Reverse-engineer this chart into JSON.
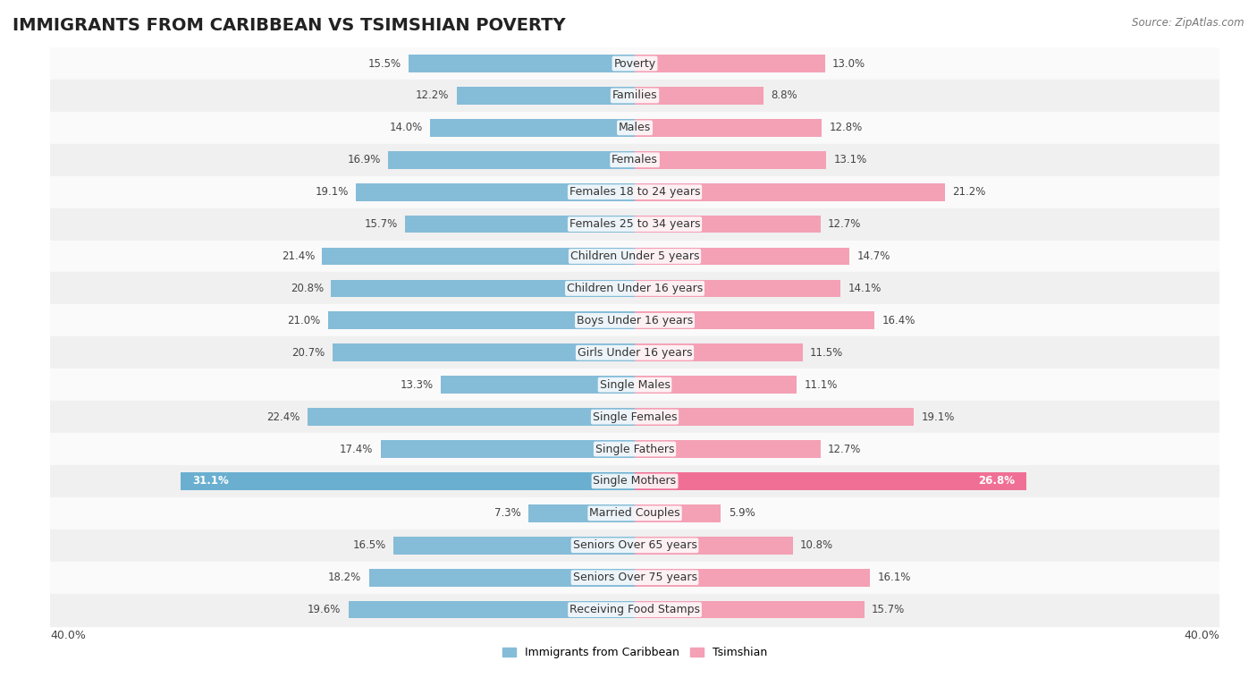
{
  "title": "IMMIGRANTS FROM CARIBBEAN VS TSIMSHIAN POVERTY",
  "source": "Source: ZipAtlas.com",
  "categories": [
    "Poverty",
    "Families",
    "Males",
    "Females",
    "Females 18 to 24 years",
    "Females 25 to 34 years",
    "Children Under 5 years",
    "Children Under 16 years",
    "Boys Under 16 years",
    "Girls Under 16 years",
    "Single Males",
    "Single Females",
    "Single Fathers",
    "Single Mothers",
    "Married Couples",
    "Seniors Over 65 years",
    "Seniors Over 75 years",
    "Receiving Food Stamps"
  ],
  "caribbean_values": [
    15.5,
    12.2,
    14.0,
    16.9,
    19.1,
    15.7,
    21.4,
    20.8,
    21.0,
    20.7,
    13.3,
    22.4,
    17.4,
    31.1,
    7.3,
    16.5,
    18.2,
    19.6
  ],
  "tsimshian_values": [
    13.0,
    8.8,
    12.8,
    13.1,
    21.2,
    12.7,
    14.7,
    14.1,
    16.4,
    11.5,
    11.1,
    19.1,
    12.7,
    26.8,
    5.9,
    10.8,
    16.1,
    15.7
  ],
  "caribbean_color": "#85bcd8",
  "tsimshian_color": "#f4a0b5",
  "single_mothers_caribbean_color": "#6aafd0",
  "single_mothers_tsimshian_color": "#f07095",
  "background_color": "#ffffff",
  "row_color_odd": "#f0f0f0",
  "row_color_even": "#fafafa",
  "xlim": 40.0,
  "legend_label_caribbean": "Immigrants from Caribbean",
  "legend_label_tsimshian": "Tsimshian",
  "title_fontsize": 14,
  "label_fontsize": 9,
  "value_fontsize": 8.5,
  "bar_height": 0.55
}
